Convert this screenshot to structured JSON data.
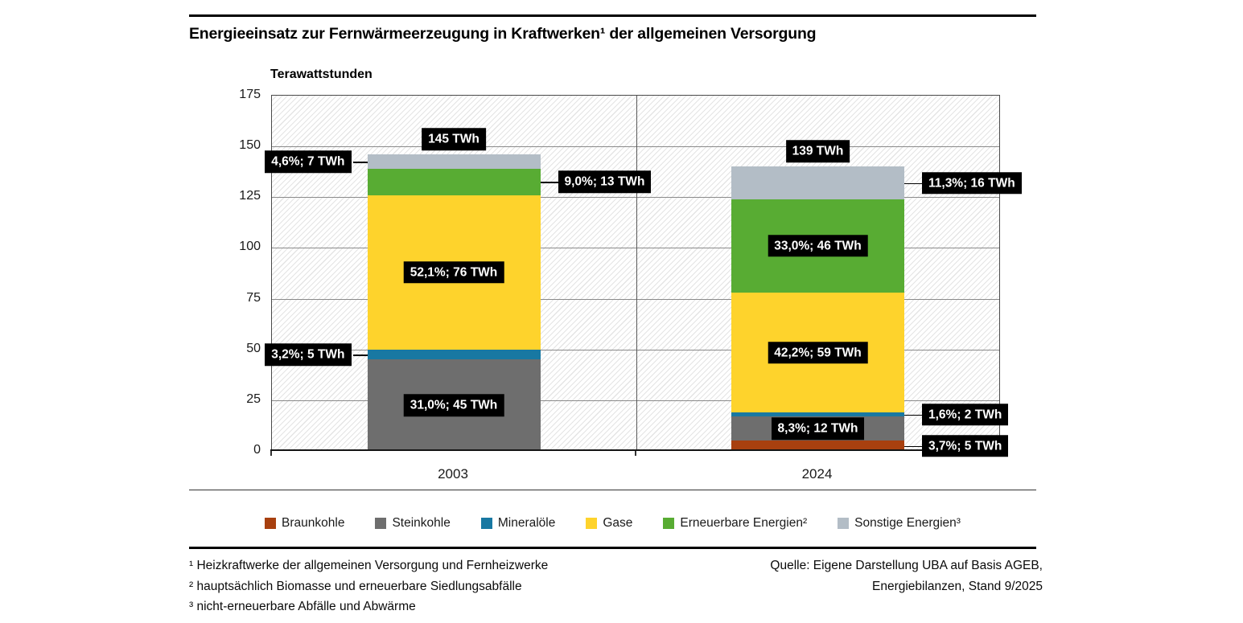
{
  "title": "Energieeinsatz zur Fernwärmeerzeugung in Kraftwerken¹ der allgemeinen Versorgung",
  "chart_data": {
    "type": "bar",
    "stacked": true,
    "title": "Energieeinsatz zur Fernwärmeerzeugung in Kraftwerken¹ der allgemeinen Versorgung",
    "unit": "Terawattstunden",
    "categories": [
      "2003",
      "2024"
    ],
    "ylim": [
      0,
      175
    ],
    "yticks": [
      0,
      25,
      50,
      75,
      100,
      125,
      150,
      175
    ],
    "grid": true,
    "legend_position": "bottom",
    "series": [
      {
        "name": "Braunkohle",
        "color": "#A8400F",
        "values": [
          0,
          5
        ],
        "segment_labels": [
          null,
          "3,7%; 5 TWh"
        ],
        "label_pos": [
          null,
          "right"
        ]
      },
      {
        "name": "Steinkohle",
        "color": "#6E6E6E",
        "values": [
          45,
          12
        ],
        "segment_labels": [
          "31,0%; 45 TWh",
          "8,3%; 12 TWh"
        ],
        "label_pos": [
          "inside",
          "inside"
        ]
      },
      {
        "name": "Mineralöle",
        "color": "#1878A2",
        "values": [
          5,
          2
        ],
        "segment_labels": [
          "3,2%; 5 TWh",
          "1,6%; 2 TWh"
        ],
        "label_pos": [
          "left",
          "right"
        ]
      },
      {
        "name": "Gase",
        "color": "#FED32C",
        "values": [
          76,
          59
        ],
        "segment_labels": [
          "52,1%; 76 TWh",
          "42,2%; 59 TWh"
        ],
        "label_pos": [
          "inside",
          "inside"
        ]
      },
      {
        "name": "Erneuerbare Energien²",
        "color": "#58AC33",
        "values": [
          13,
          46
        ],
        "segment_labels": [
          "9,0%; 13 TWh",
          "33,0%; 46 TWh"
        ],
        "label_pos": [
          "right",
          "inside"
        ]
      },
      {
        "name": "Sonstige Energien³",
        "color": "#B3BDC6",
        "values": [
          7,
          16
        ],
        "segment_labels": [
          "4,6%; 7 TWh",
          "11,3%; 16 TWh"
        ],
        "label_pos": [
          "left",
          "right"
        ]
      }
    ],
    "totals": [
      {
        "value": 145,
        "label": "145 TWh"
      },
      {
        "value": 139,
        "label": "139 TWh"
      }
    ]
  },
  "footnotes": [
    "¹ Heizkraftwerke der allgemeinen Versorgung und Fernheizwerke",
    "² hauptsächlich Biomasse und erneuerbare Siedlungsabfälle",
    "³ nicht-erneuerbare Abfälle und Abwärme"
  ],
  "source": {
    "line1": "Quelle: Eigene Darstellung UBA auf Basis AGEB,",
    "line2": "Energiebilanzen, Stand 9/2025"
  }
}
